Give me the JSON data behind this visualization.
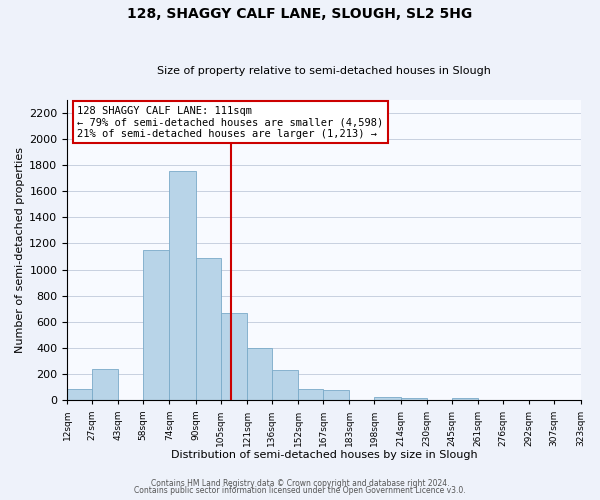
{
  "title": "128, SHAGGY CALF LANE, SLOUGH, SL2 5HG",
  "subtitle": "Size of property relative to semi-detached houses in Slough",
  "xlabel": "Distribution of semi-detached houses by size in Slough",
  "ylabel": "Number of semi-detached properties",
  "bar_color": "#b8d4e8",
  "bar_edge_color": "#7aaac8",
  "vline_x": 111,
  "vline_color": "#cc0000",
  "annotation_title": "128 SHAGGY CALF LANE: 111sqm",
  "annotation_line1": "← 79% of semi-detached houses are smaller (4,598)",
  "annotation_line2": "21% of semi-detached houses are larger (1,213) →",
  "bin_edges": [
    12,
    27,
    43,
    58,
    74,
    90,
    105,
    121,
    136,
    152,
    167,
    183,
    198,
    214,
    230,
    245,
    261,
    276,
    292,
    307,
    323
  ],
  "bin_heights": [
    90,
    240,
    0,
    1150,
    1750,
    1090,
    670,
    400,
    230,
    90,
    80,
    0,
    30,
    20,
    0,
    20,
    0,
    0,
    0,
    0
  ],
  "ylim": [
    0,
    2300
  ],
  "yticks": [
    0,
    200,
    400,
    600,
    800,
    1000,
    1200,
    1400,
    1600,
    1800,
    2000,
    2200
  ],
  "footer1": "Contains HM Land Registry data © Crown copyright and database right 2024.",
  "footer2": "Contains public sector information licensed under the Open Government Licence v3.0.",
  "background_color": "#eef2fa",
  "plot_background": "#f8faff",
  "grid_color": "#c8d0e0"
}
